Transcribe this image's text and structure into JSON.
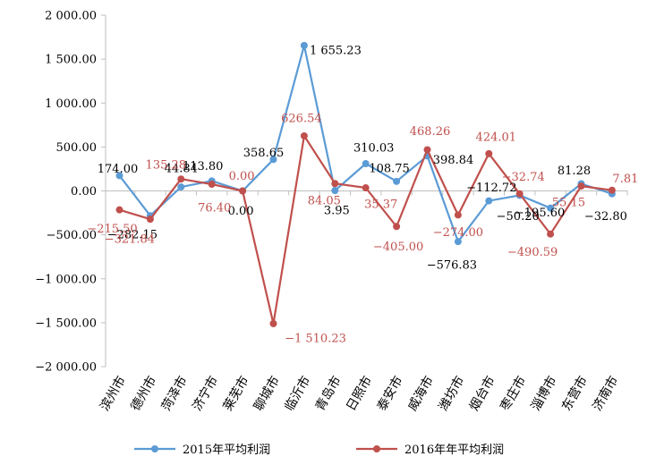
{
  "chart_data": {
    "type": "line",
    "title": "",
    "xlabel": "",
    "ylabel": "",
    "ylim": [
      -2000,
      2000
    ],
    "yticks": [
      -2000,
      -1500,
      -1000,
      -500,
      0,
      500,
      1000,
      1500,
      2000
    ],
    "ytick_labels": [
      "−2 000.00",
      "−1 500.00",
      "−1 000.00",
      "−500.00",
      "0.00",
      "500.00",
      "1 000.00",
      "1 500.00",
      "2 000.00"
    ],
    "grid": false,
    "legend_position": "bottom",
    "categories": [
      "滨州市",
      "德州市",
      "菏泽市",
      "济宁市",
      "莱芜市",
      "聊城市",
      "临沂市",
      "青岛市",
      "日照市",
      "泰安市",
      "威海市",
      "潍坊市",
      "烟台市",
      "枣庄市",
      "淄博市",
      "东营市",
      "济南市"
    ],
    "series": [
      {
        "name": "2015年平均利润",
        "color": "#5b9bd5",
        "values": [
          174.0,
          -282.15,
          44.84,
          113.8,
          0.0,
          358.65,
          1655.23,
          3.95,
          310.03,
          108.75,
          398.84,
          -576.83,
          -112.72,
          -50.2,
          -195.6,
          81.28,
          -32.8
        ],
        "labels": [
          "174.00",
          "−282.15",
          "44.84",
          "113.80",
          "0.00",
          "358.65",
          "1 655.23",
          "3.95",
          "310.03",
          "108.75",
          "398.84",
          "−576.83",
          "−112.72",
          "−50.20",
          "−195.60",
          "81.28",
          "−32.80"
        ]
      },
      {
        "name": "2016年年平均利润",
        "color": "#c0504d",
        "values": [
          -215.5,
          -321.84,
          135.28,
          76.4,
          0.0,
          -1510.23,
          626.54,
          84.05,
          35.37,
          -405.0,
          468.26,
          -274.0,
          424.01,
          -32.74,
          -490.59,
          55.15,
          7.81
        ],
        "labels": [
          "−215.50",
          "−321.84",
          "135.28",
          "76.40",
          "0.00",
          "−1 510.23",
          "626.54",
          "84.05",
          "35.37",
          "−405.00",
          "468.26",
          "−274.00",
          "424.01",
          "−32.74",
          "−490.59",
          "55.15",
          "7.81"
        ]
      }
    ]
  }
}
